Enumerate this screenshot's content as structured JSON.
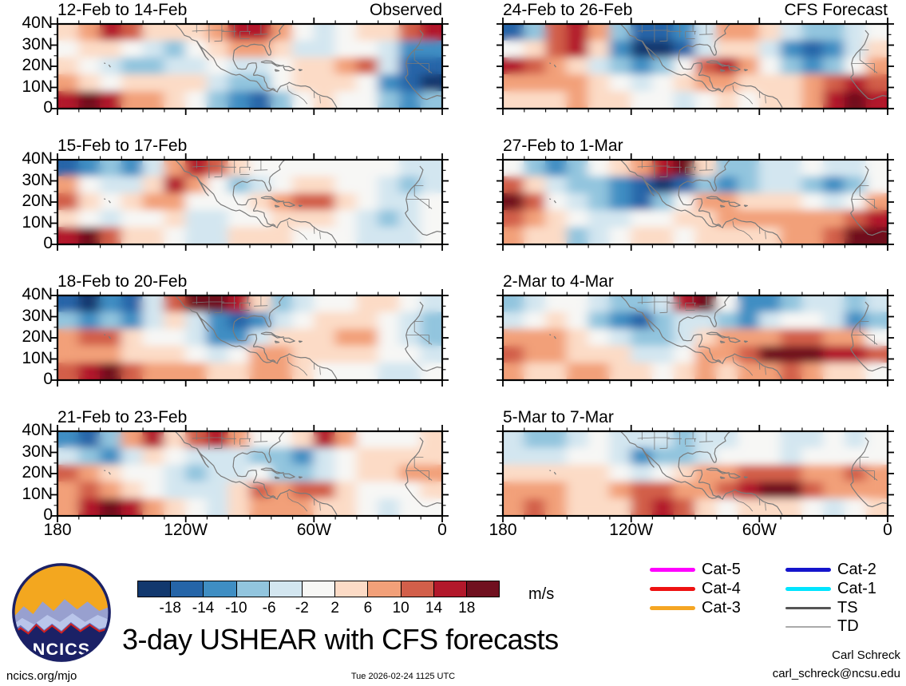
{
  "title": "3-day USHEAR with CFS forecasts",
  "footer": {
    "site": "ncics.org/mjo",
    "timestamp": "Tue 2026-02-24 1125 UTC",
    "credit_name": "Carl Schreck",
    "credit_email": "carl_schreck@ncsu.edu"
  },
  "logo": {
    "text": "NCICS",
    "sun_color": "#f3a71f",
    "navy": "#1b2166",
    "red": "#cf2020",
    "ridge_light": "#98a0cf",
    "ridge_mid": "#6a73bd",
    "ridge_pale": "#b9c5ea"
  },
  "colorbar": {
    "unit": "m/s",
    "tick_labels": [
      "-18",
      "-14",
      "-10",
      "-6",
      "-2",
      "2",
      "6",
      "10",
      "14",
      "18"
    ],
    "colors": [
      "#12386e",
      "#2565a8",
      "#3f8ec3",
      "#92c5de",
      "#d3e6f0",
      "#f7f7f5",
      "#fcdbc6",
      "#f2a079",
      "#d25f4a",
      "#b2182b",
      "#70101f"
    ]
  },
  "legend": {
    "columns": [
      [
        {
          "label": "Cat-5",
          "color": "#ff00ff",
          "weight": 5
        },
        {
          "label": "Cat-4",
          "color": "#ee1111",
          "weight": 5
        },
        {
          "label": "Cat-3",
          "color": "#f5a623",
          "weight": 5
        }
      ],
      [
        {
          "label": "Cat-2",
          "color": "#1515cc",
          "weight": 5
        },
        {
          "label": "Cat-1",
          "color": "#00e5ff",
          "weight": 5
        },
        {
          "label": "TS",
          "color": "#555555",
          "weight": 3
        },
        {
          "label": "TD",
          "color": "#aaaaaa",
          "weight": 1.5
        }
      ]
    ]
  },
  "axes": {
    "x_tick_labels": [
      "180",
      "120W",
      "60W",
      "0"
    ],
    "y_tick_labels": [
      "40N",
      "30N",
      "20N",
      "10N",
      "0"
    ]
  },
  "chart_data": {
    "type": "heatmap",
    "title": "3-day USHEAR with CFS forecasts",
    "unit": "m/s",
    "subplot_grid": [
      4,
      2
    ],
    "lon_deg_west_range": [
      180,
      0
    ],
    "lat_deg_north_range": [
      0,
      40
    ],
    "x_tick_labels": [
      "180",
      "120W",
      "60W",
      "0"
    ],
    "y_tick_labels": [
      "40N",
      "30N",
      "20N",
      "10N",
      "0"
    ],
    "levels": [
      -18,
      -14,
      -10,
      -6,
      -2,
      2,
      6,
      10,
      14,
      18
    ],
    "coastline_color": "#7a7a7a",
    "grid_lon_centers_deg_west": [
      175,
      165,
      155,
      145,
      135,
      125,
      115,
      105,
      95,
      85,
      75,
      65,
      55,
      45,
      35,
      25,
      15,
      5
    ],
    "grid_lat_centers_deg_north": [
      36,
      28,
      20,
      12,
      4
    ],
    "panels": [
      {
        "title": "12-Feb to 14-Feb",
        "annotation": "Observed",
        "values": [
          [
            4,
            8,
            14,
            10,
            2,
            2,
            4,
            8,
            16,
            14,
            6,
            -2,
            -4,
            0,
            4,
            4,
            10,
            16
          ],
          [
            0,
            2,
            4,
            0,
            -6,
            -8,
            -2,
            2,
            8,
            8,
            2,
            -4,
            -6,
            -2,
            0,
            -6,
            -12,
            -14
          ],
          [
            2,
            0,
            -4,
            -10,
            -8,
            -4,
            -4,
            -2,
            -6,
            -4,
            0,
            2,
            4,
            8,
            12,
            -6,
            -16,
            -18
          ],
          [
            6,
            2,
            0,
            2,
            4,
            4,
            2,
            -4,
            -10,
            -8,
            -2,
            2,
            4,
            2,
            0,
            -12,
            -18,
            -20
          ],
          [
            14,
            18,
            16,
            8,
            6,
            4,
            0,
            -8,
            -14,
            -18,
            -8,
            0,
            2,
            0,
            -2,
            -8,
            -12,
            -10
          ]
        ]
      },
      {
        "title": "15-Feb to 17-Feb",
        "annotation": "",
        "values": [
          [
            -16,
            -12,
            -10,
            -14,
            -4,
            8,
            16,
            10,
            4,
            0,
            -2,
            -2,
            -2,
            0,
            0,
            -2,
            -6,
            -4
          ],
          [
            8,
            0,
            -4,
            -4,
            4,
            14,
            8,
            0,
            -8,
            -6,
            0,
            2,
            2,
            0,
            -2,
            -4,
            -8,
            -4
          ],
          [
            10,
            2,
            0,
            2,
            6,
            6,
            0,
            -2,
            0,
            4,
            8,
            13,
            11,
            4,
            0,
            -4,
            -6,
            -2
          ],
          [
            2,
            -2,
            -4,
            -2,
            0,
            2,
            -4,
            -6,
            -2,
            0,
            2,
            4,
            2,
            0,
            -4,
            -8,
            -6,
            -2
          ],
          [
            16,
            19,
            12,
            4,
            2,
            -2,
            -6,
            -4,
            2,
            4,
            2,
            0,
            -2,
            -2,
            -4,
            -6,
            -4,
            -2
          ]
        ]
      },
      {
        "title": "18-Feb to 20-Feb",
        "annotation": "",
        "values": [
          [
            -18,
            -20,
            -14,
            -16,
            -6,
            10,
            18,
            20,
            14,
            2,
            -8,
            -6,
            -2,
            0,
            2,
            2,
            0,
            -4
          ],
          [
            -8,
            -14,
            -10,
            -12,
            -4,
            4,
            -4,
            -14,
            -18,
            -14,
            -6,
            -2,
            2,
            4,
            4,
            0,
            -4,
            -8
          ],
          [
            8,
            10,
            12,
            2,
            -2,
            -2,
            -6,
            -12,
            -14,
            -4,
            4,
            4,
            4,
            8,
            8,
            -2,
            -6,
            -8
          ],
          [
            6,
            8,
            6,
            4,
            4,
            2,
            0,
            -4,
            -2,
            8,
            8,
            4,
            2,
            2,
            2,
            0,
            -2,
            -4
          ],
          [
            10,
            14,
            18,
            10,
            8,
            6,
            6,
            4,
            4,
            8,
            6,
            2,
            0,
            0,
            -2,
            -4,
            -4,
            -2
          ]
        ]
      },
      {
        "title": "21-Feb to 23-Feb",
        "annotation": "",
        "values": [
          [
            -14,
            -18,
            -10,
            8,
            14,
            4,
            10,
            14,
            6,
            0,
            0,
            4,
            14,
            6,
            0,
            -2,
            0,
            2
          ],
          [
            -4,
            -10,
            -14,
            -4,
            2,
            -2,
            -6,
            -6,
            -4,
            -8,
            -10,
            -12,
            -6,
            -2,
            2,
            4,
            4,
            2
          ],
          [
            10,
            6,
            2,
            0,
            -2,
            -6,
            -8,
            -6,
            -4,
            -2,
            -8,
            -10,
            -4,
            0,
            2,
            4,
            8,
            8
          ],
          [
            6,
            10,
            8,
            4,
            -2,
            -6,
            -6,
            -4,
            2,
            10,
            8,
            12,
            10,
            2,
            0,
            -2,
            0,
            2
          ],
          [
            8,
            16,
            20,
            14,
            6,
            2,
            -2,
            -4,
            2,
            8,
            6,
            6,
            4,
            2,
            0,
            -4,
            -2,
            0
          ]
        ]
      },
      {
        "title": "24-Feb to 26-Feb",
        "annotation": "CFS Forecast",
        "values": [
          [
            -16,
            -8,
            10,
            16,
            8,
            -10,
            -18,
            -18,
            -14,
            -6,
            6,
            8,
            2,
            -4,
            -10,
            -10,
            -4,
            0
          ],
          [
            -2,
            2,
            12,
            14,
            2,
            -14,
            -20,
            -20,
            -16,
            -4,
            4,
            2,
            -4,
            -12,
            -16,
            -12,
            -4,
            2
          ],
          [
            14,
            10,
            6,
            4,
            -4,
            -10,
            -12,
            -10,
            -2,
            12,
            14,
            6,
            0,
            -8,
            -12,
            -8,
            0,
            6
          ],
          [
            8,
            6,
            8,
            6,
            2,
            -2,
            -4,
            -2,
            2,
            6,
            8,
            4,
            2,
            2,
            6,
            10,
            14,
            12
          ],
          [
            4,
            2,
            4,
            6,
            4,
            2,
            0,
            -2,
            -4,
            0,
            2,
            0,
            2,
            4,
            8,
            14,
            18,
            16
          ]
        ]
      },
      {
        "title": "27-Feb to 1-Mar",
        "annotation": "",
        "values": [
          [
            -2,
            -8,
            -12,
            -8,
            -2,
            2,
            8,
            16,
            18,
            4,
            -8,
            -8,
            -6,
            -4,
            -2,
            -4,
            -6,
            -2
          ],
          [
            12,
            2,
            -6,
            -8,
            -8,
            -14,
            -18,
            -20,
            -16,
            -10,
            -14,
            -8,
            -4,
            -4,
            -8,
            -12,
            -10,
            0
          ],
          [
            18,
            12,
            0,
            -4,
            -8,
            -14,
            -16,
            -10,
            -2,
            6,
            6,
            4,
            2,
            2,
            0,
            -4,
            -2,
            6
          ],
          [
            12,
            6,
            2,
            -2,
            -6,
            -6,
            -2,
            0,
            2,
            4,
            6,
            6,
            6,
            8,
            8,
            8,
            12,
            14
          ],
          [
            6,
            4,
            2,
            -8,
            -4,
            0,
            2,
            2,
            0,
            2,
            2,
            4,
            4,
            6,
            8,
            12,
            18,
            20
          ]
        ]
      },
      {
        "title": "2-Mar to 4-Mar",
        "annotation": "",
        "values": [
          [
            -8,
            -6,
            -2,
            0,
            -4,
            -8,
            -10,
            -4,
            16,
            18,
            0,
            -12,
            -12,
            -8,
            -4,
            -6,
            -10,
            -6
          ],
          [
            -6,
            -2,
            2,
            0,
            -8,
            -12,
            -16,
            -10,
            -6,
            -4,
            -8,
            -14,
            -6,
            -2,
            0,
            -4,
            -12,
            -10
          ],
          [
            6,
            8,
            6,
            4,
            0,
            -6,
            -10,
            -8,
            -4,
            2,
            6,
            6,
            8,
            12,
            10,
            8,
            6,
            0
          ],
          [
            10,
            8,
            6,
            4,
            4,
            2,
            -4,
            -6,
            0,
            6,
            8,
            12,
            18,
            20,
            20,
            14,
            16,
            10
          ],
          [
            6,
            4,
            4,
            6,
            6,
            4,
            2,
            0,
            4,
            6,
            4,
            6,
            8,
            10,
            8,
            4,
            2,
            -2
          ]
        ]
      },
      {
        "title": "5-Mar to 7-Mar",
        "annotation": "",
        "values": [
          [
            -6,
            -10,
            -8,
            -4,
            -2,
            -4,
            -4,
            -6,
            -8,
            -6,
            -4,
            -2,
            -2,
            -4,
            -4,
            -2,
            -4,
            -2
          ],
          [
            -4,
            -6,
            -4,
            -2,
            0,
            -6,
            -12,
            -8,
            -10,
            -6,
            -2,
            0,
            -2,
            -4,
            -2,
            0,
            -2,
            0
          ],
          [
            2,
            4,
            4,
            2,
            2,
            0,
            -4,
            -2,
            2,
            6,
            8,
            12,
            12,
            10,
            8,
            8,
            10,
            6
          ],
          [
            6,
            8,
            6,
            4,
            4,
            6,
            10,
            12,
            8,
            6,
            10,
            16,
            20,
            18,
            10,
            6,
            8,
            6
          ],
          [
            8,
            12,
            8,
            4,
            2,
            4,
            10,
            14,
            10,
            2,
            0,
            2,
            4,
            2,
            -2,
            -4,
            0,
            2
          ]
        ]
      }
    ]
  }
}
